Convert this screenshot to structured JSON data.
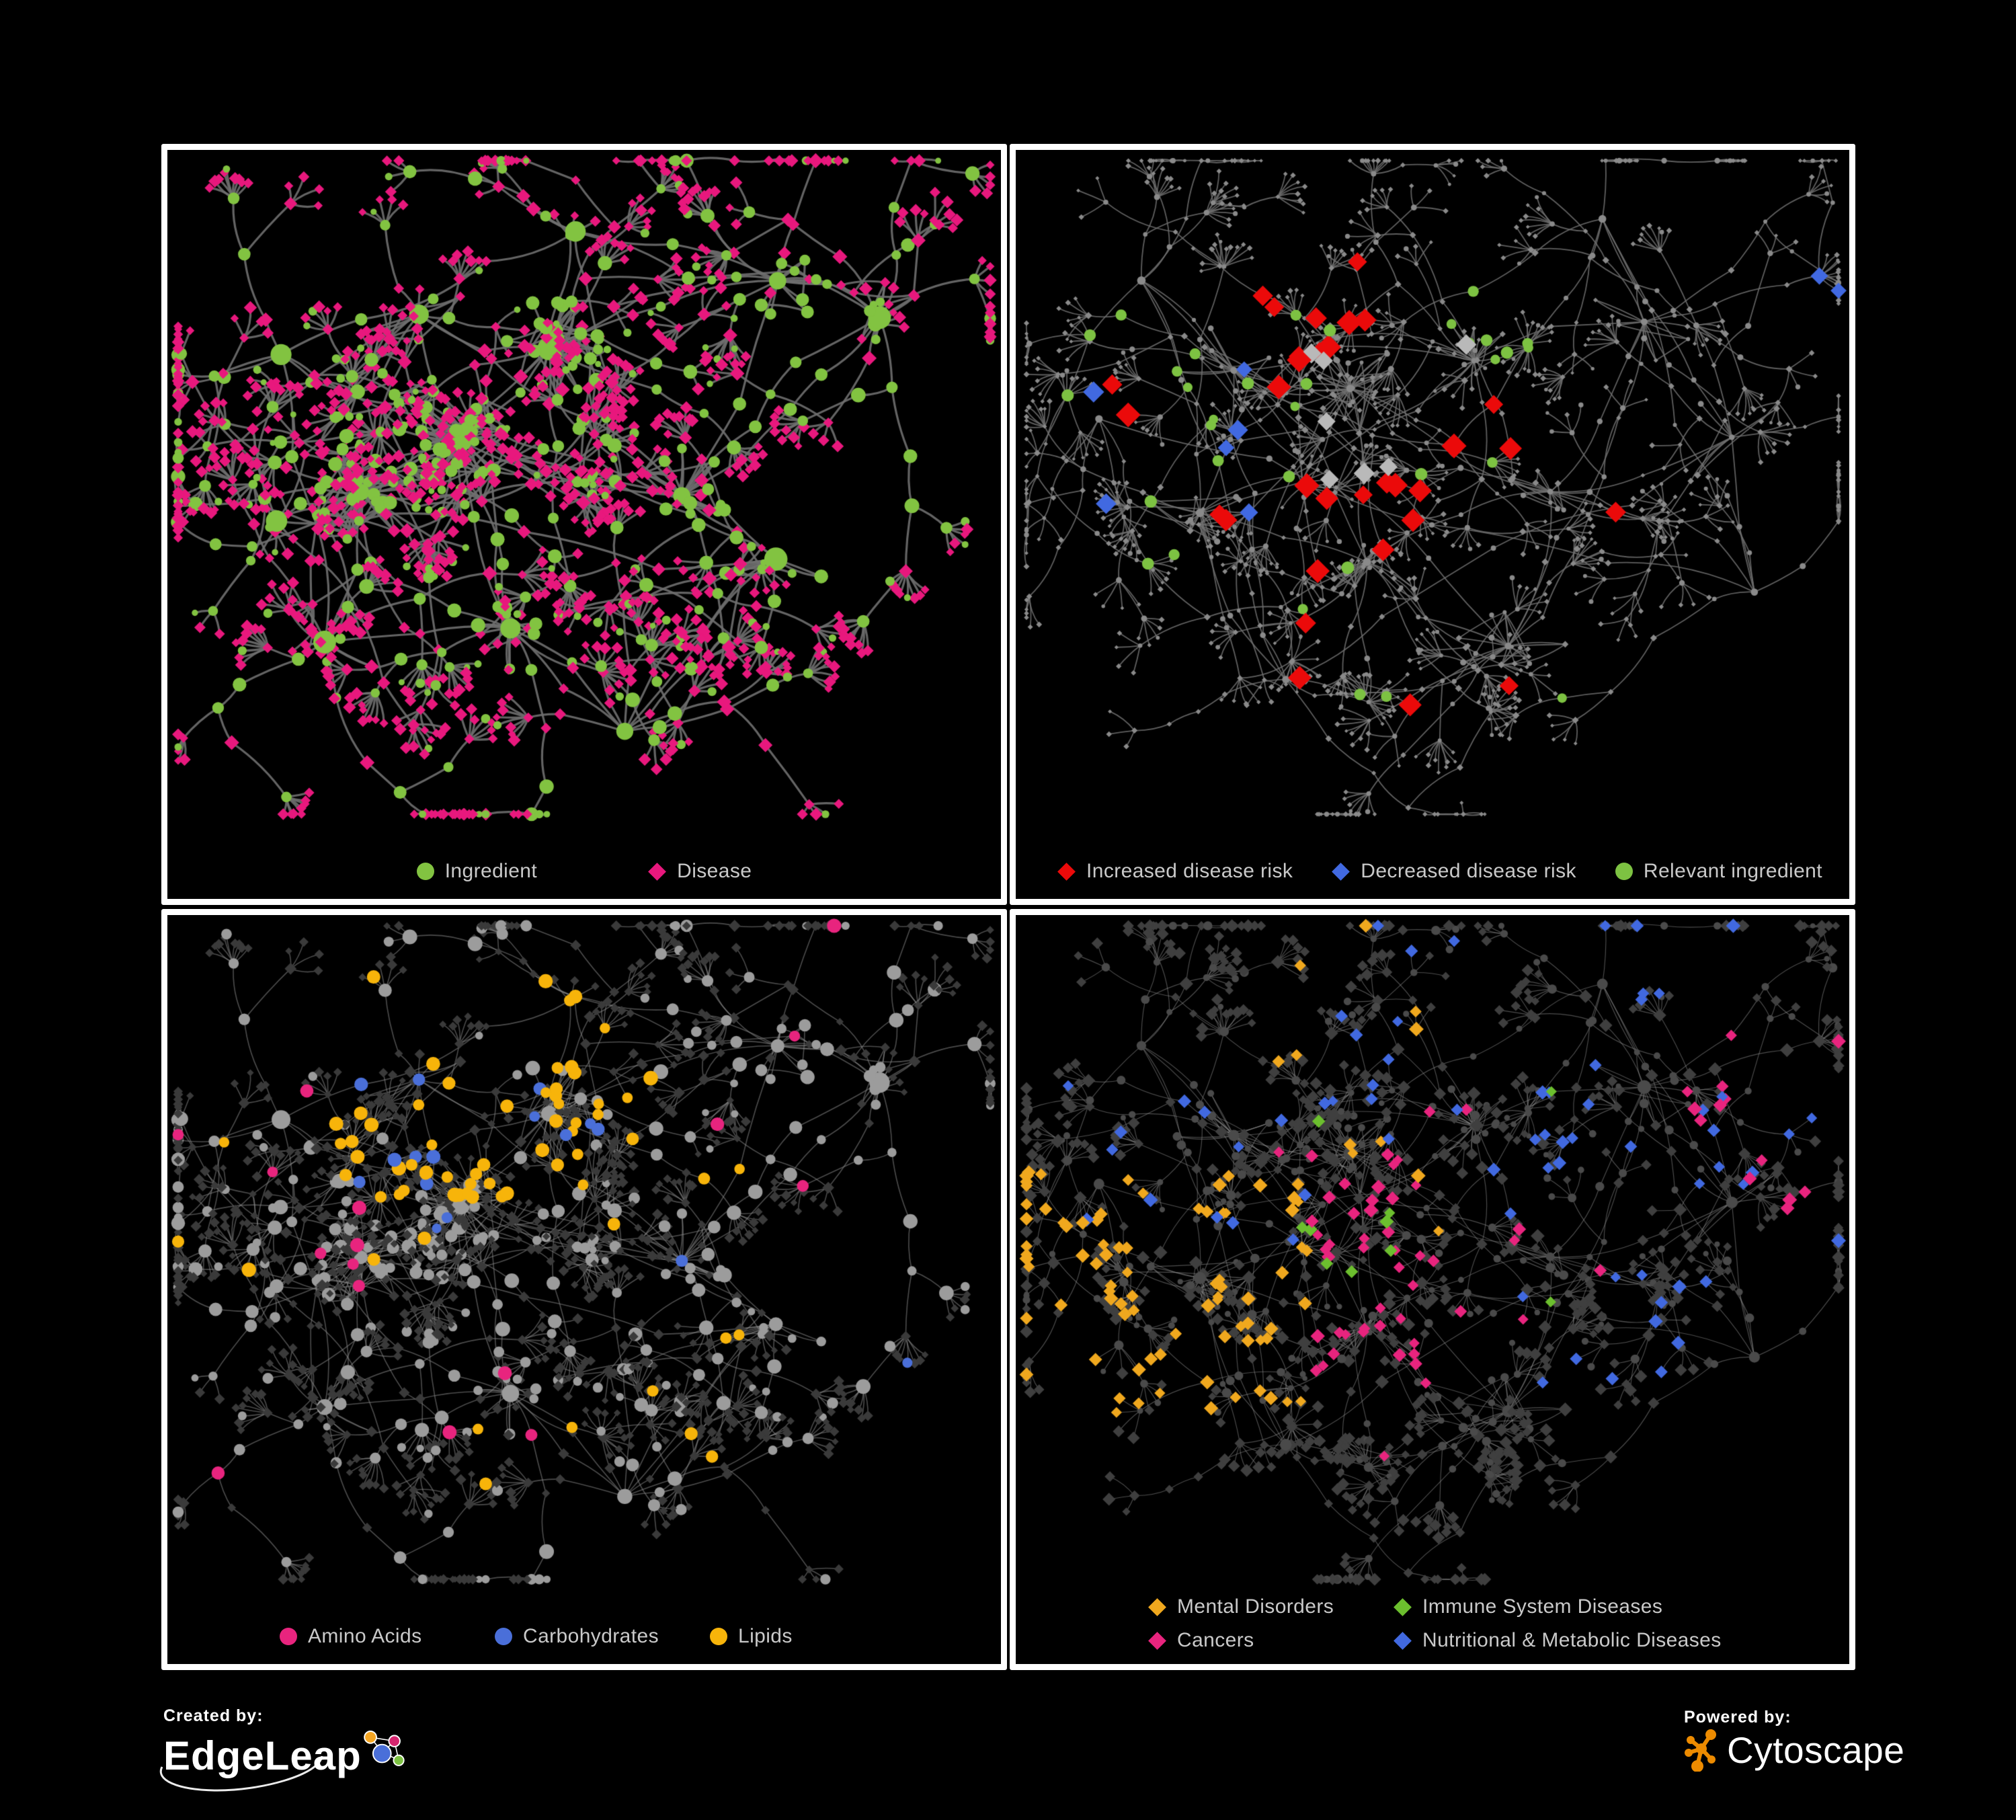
{
  "page": {
    "background": "#000000",
    "panel_border_color": "#ffffff"
  },
  "footer": {
    "created_by": {
      "label": "Created by:",
      "brand": "EdgeLeap",
      "logo_colors": {
        "orange": "#F5A623",
        "pink": "#D6246E",
        "blue": "#4A6FD9",
        "green": "#7DC242"
      }
    },
    "powered_by": {
      "label": "Powered by:",
      "brand": "Cytoscape",
      "logo_color": "#ED8B00"
    }
  },
  "layouts": {
    "left": {
      "seed": 1337,
      "clusters": [
        [
          0.36,
          0.44,
          40,
          7
        ],
        [
          0.23,
          0.5,
          34,
          6
        ],
        [
          0.47,
          0.3,
          30,
          6
        ],
        [
          0.3,
          0.24,
          6,
          6
        ],
        [
          0.62,
          0.5,
          16,
          6
        ],
        [
          0.72,
          0.2,
          10,
          5
        ],
        [
          0.86,
          0.24,
          6,
          4
        ],
        [
          0.5,
          0.13,
          0,
          4
        ],
        [
          0.14,
          0.3,
          0,
          5
        ],
        [
          0.2,
          0.74,
          4,
          5
        ],
        [
          0.4,
          0.7,
          8,
          5
        ],
        [
          0.56,
          0.86,
          0,
          7
        ],
        [
          0.74,
          0.62,
          4,
          4
        ],
        [
          0.12,
          0.56,
          0,
          4
        ]
      ],
      "extra_links": [
        [
          0,
          4
        ],
        [
          2,
          5
        ],
        [
          4,
          6
        ],
        [
          0,
          10
        ],
        [
          2,
          0
        ],
        [
          1,
          9
        ],
        [
          10,
          11
        ],
        [
          4,
          12
        ],
        [
          5,
          7
        ],
        [
          1,
          13
        ]
      ]
    },
    "right": {
      "seed": 4242,
      "clusters": [
        [
          0.4,
          0.36,
          26,
          7
        ],
        [
          0.27,
          0.32,
          12,
          6
        ],
        [
          0.55,
          0.3,
          14,
          6
        ],
        [
          0.22,
          0.55,
          6,
          5
        ],
        [
          0.42,
          0.6,
          10,
          6
        ],
        [
          0.64,
          0.5,
          8,
          5
        ],
        [
          0.76,
          0.26,
          6,
          5
        ],
        [
          0.6,
          0.74,
          10,
          5
        ],
        [
          0.15,
          0.2,
          0,
          5
        ],
        [
          0.33,
          0.78,
          0,
          5
        ],
        [
          0.87,
          0.44,
          4,
          4
        ],
        [
          0.7,
          0.1,
          0,
          4
        ],
        [
          0.88,
          0.66,
          0,
          4
        ],
        [
          0.1,
          0.4,
          0,
          4
        ]
      ],
      "extra_links": [
        [
          0,
          5
        ],
        [
          2,
          6
        ],
        [
          5,
          7
        ],
        [
          4,
          7
        ],
        [
          1,
          8
        ],
        [
          0,
          4
        ],
        [
          6,
          11
        ],
        [
          10,
          12
        ],
        [
          5,
          10
        ],
        [
          3,
          9
        ]
      ]
    }
  },
  "panels": [
    {
      "id": "ingredient-disease",
      "legend": [
        {
          "label": "Ingredient",
          "shape": "circle",
          "color": "#82C341"
        },
        {
          "label": "Disease",
          "shape": "diamond",
          "color": "#E8187D"
        }
      ],
      "style": {
        "layout": "left",
        "hl_seed": 11,
        "edge": {
          "color": "#6F6F6F",
          "width": 3.2,
          "alpha": 0.9
        },
        "ingredient": {
          "color": "#82C341",
          "sizes": [
            15,
            8.5,
            5.5
          ]
        },
        "disease": {
          "color": "#E8187D",
          "sizes": [
            9,
            7.5,
            6.5
          ]
        },
        "highlights": []
      }
    },
    {
      "id": "disease-risk",
      "legend": [
        {
          "label": "Increased disease risk",
          "shape": "diamond",
          "color": "#EB0A0A"
        },
        {
          "label": "Decreased disease risk",
          "shape": "diamond",
          "color": "#4169E1"
        },
        {
          "label": "Relevant ingredient",
          "shape": "circle",
          "color": "#7DC242"
        }
      ],
      "style": {
        "layout": "right",
        "hl_seed": 22,
        "edge": {
          "color": "#707070",
          "width": 1.8,
          "alpha": 0.85
        },
        "ingredient": {
          "color": "#8A8A8A",
          "sizes": [
            5,
            3.6,
            3
          ]
        },
        "disease": {
          "color": "#8A8A8A",
          "sizes": [
            4.5,
            3.6,
            3
          ]
        },
        "highlights": [
          {
            "target": "disease",
            "color": "#EB0A0A",
            "size": 14,
            "count": 26,
            "region": [
              0.1,
              0.72,
              0.15,
              0.55
            ]
          },
          {
            "target": "disease",
            "color": "#EB0A0A",
            "size": 13,
            "count": 6,
            "region": [
              0.3,
              0.95,
              0.55,
              0.92
            ]
          },
          {
            "target": "disease",
            "color": "#B9B9B9",
            "size": 12,
            "count": 7,
            "region": [
              0.1,
              0.58,
              0.22,
              0.6
            ]
          },
          {
            "target": "disease",
            "color": "#4169E1",
            "size": 12,
            "count": 6,
            "region": [
              0.08,
              0.32,
              0.28,
              0.58
            ]
          },
          {
            "target": "disease",
            "color": "#4169E1",
            "size": 12,
            "count": 2,
            "region": [
              0.82,
              1.0,
              0.1,
              0.25
            ]
          },
          {
            "target": "ingredient",
            "color": "#7DC242",
            "size": 8,
            "count": 26,
            "region": [
              0.05,
              0.62,
              0.15,
              0.62
            ]
          },
          {
            "target": "ingredient",
            "color": "#7DC242",
            "size": 8,
            "count": 7,
            "region": [
              0.3,
              0.92,
              0.45,
              0.85
            ]
          }
        ]
      }
    },
    {
      "id": "nutrient-classes",
      "legend": [
        {
          "label": "Amino Acids",
          "shape": "circle",
          "color": "#E8247E"
        },
        {
          "label": "Carbohydrates",
          "shape": "circle",
          "color": "#4A6FD9"
        },
        {
          "label": "Lipids",
          "shape": "circle",
          "color": "#F7B40A"
        }
      ],
      "style": {
        "layout": "left",
        "hl_seed": 33,
        "edge": {
          "color": "#8A8A8A",
          "width": 1.6,
          "alpha": 0.55
        },
        "ingredient": {
          "color": "#9C9C9C",
          "sizes": [
            12,
            8.5,
            6.5
          ]
        },
        "disease": {
          "color": "#3A3A3A",
          "sizes": [
            7,
            6,
            5.5
          ]
        },
        "highlights": [
          {
            "target": "ingredient",
            "color": "#F7B40A",
            "size": 9,
            "count": 55,
            "region": [
              0.18,
              0.58,
              0.05,
              0.42
            ]
          },
          {
            "target": "ingredient",
            "color": "#F7B40A",
            "size": 9,
            "count": 16,
            "region": [
              0.0,
              1.0,
              0.0,
              1.0
            ]
          },
          {
            "target": "ingredient",
            "color": "#4A6FD9",
            "size": 9,
            "count": 12,
            "region": [
              0.22,
              0.52,
              0.05,
              0.4
            ]
          },
          {
            "target": "ingredient",
            "color": "#4A6FD9",
            "size": 8,
            "count": 4,
            "region": [
              0.0,
              1.0,
              0.35,
              1.0
            ]
          },
          {
            "target": "ingredient",
            "color": "#E8247E",
            "size": 9,
            "count": 16,
            "region": [
              0.0,
              1.0,
              0.0,
              1.0
            ]
          }
        ]
      }
    },
    {
      "id": "disease-classes",
      "legend": [
        {
          "label": "Mental Disorders",
          "shape": "diamond",
          "color": "#F0A81E"
        },
        {
          "label": "Immune System Diseases",
          "shape": "diamond",
          "color": "#6CBF2E"
        },
        {
          "label": "Cancers",
          "shape": "diamond",
          "color": "#E8247E"
        },
        {
          "label": "Nutritional & Metabolic Diseases",
          "shape": "diamond",
          "color": "#4169E0"
        }
      ],
      "style": {
        "layout": "right",
        "hl_seed": 44,
        "edge": {
          "color": "#9A9A9A",
          "width": 1.15,
          "alpha": 0.5
        },
        "ingredient": {
          "color": "#4A4A4A",
          "sizes": [
            8,
            5.5,
            4.5
          ]
        },
        "disease": {
          "color": "#3F3F3F",
          "sizes": [
            8,
            7,
            6.5
          ]
        },
        "highlights": [
          {
            "target": "disease",
            "color": "#F0A81E",
            "size": 8,
            "count": 80,
            "region": [
              0.0,
              0.35,
              0.38,
              0.75
            ]
          },
          {
            "target": "disease",
            "color": "#F0A81E",
            "size": 8,
            "count": 12,
            "region": [
              0.1,
              0.6,
              0.0,
              0.5
            ]
          },
          {
            "target": "disease",
            "color": "#E8247E",
            "size": 8,
            "count": 45,
            "region": [
              0.35,
              0.62,
              0.35,
              0.7
            ]
          },
          {
            "target": "disease",
            "color": "#E8247E",
            "size": 8,
            "count": 10,
            "region": [
              0.8,
              1.0,
              0.25,
              0.45
            ]
          },
          {
            "target": "disease",
            "color": "#E8247E",
            "size": 8,
            "count": 8,
            "region": [
              0.0,
              1.0,
              0.0,
              1.0
            ]
          },
          {
            "target": "disease",
            "color": "#4169E0",
            "size": 8,
            "count": 30,
            "region": [
              0.3,
              0.95,
              0.0,
              0.35
            ]
          },
          {
            "target": "disease",
            "color": "#4169E0",
            "size": 8,
            "count": 25,
            "region": [
              0.55,
              1.0,
              0.3,
              0.75
            ]
          },
          {
            "target": "disease",
            "color": "#4169E0",
            "size": 8,
            "count": 12,
            "region": [
              0.05,
              0.35,
              0.15,
              0.5
            ]
          },
          {
            "target": "disease",
            "color": "#6CBF2E",
            "size": 8,
            "count": 10,
            "region": [
              0.3,
              0.65,
              0.2,
              0.6
            ]
          }
        ]
      }
    }
  ]
}
